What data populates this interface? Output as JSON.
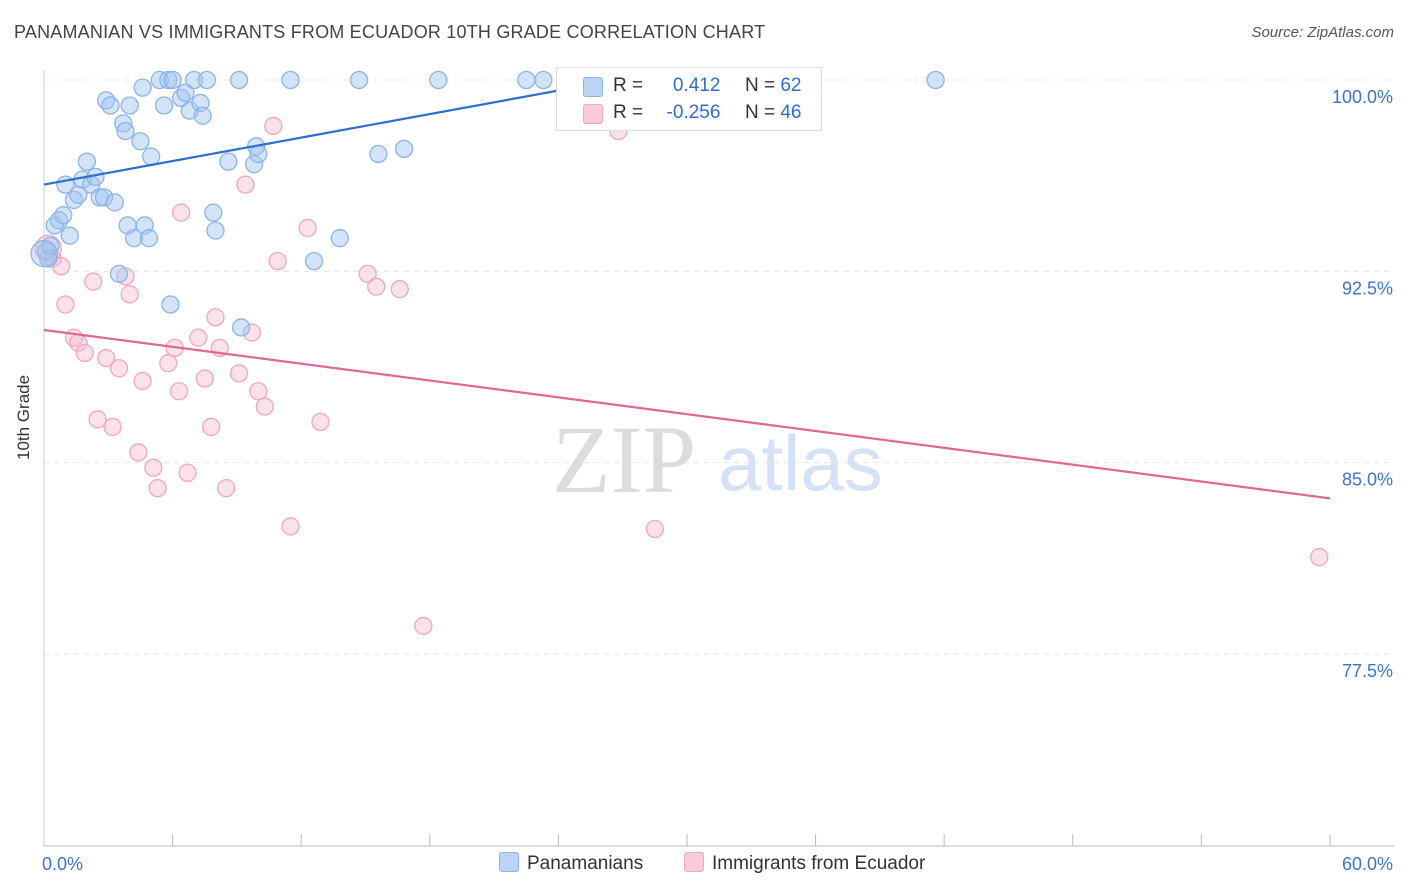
{
  "chart_data": {
    "type": "scatter",
    "title": "PANAMANIAN VS IMMIGRANTS FROM ECUADOR 10TH GRADE CORRELATION CHART",
    "source": "Source: ZipAtlas.com",
    "ylabel": "10th Grade",
    "xlim": [
      0,
      60
    ],
    "ylim": [
      71,
      101.5
    ],
    "x_tick_labels": [
      "0.0%",
      "60.0%"
    ],
    "y_ticks": [
      {
        "value": 77.5,
        "label": "77.5%"
      },
      {
        "value": 85.0,
        "label": "85.0%"
      },
      {
        "value": 92.5,
        "label": "92.5%"
      },
      {
        "value": 100.0,
        "label": "100.0%"
      }
    ],
    "watermark": {
      "zip": "ZIP",
      "atlas": "atlas"
    },
    "legend": {
      "r_label": "R =",
      "n_label": "N =",
      "entries": [
        {
          "r": "0.412",
          "n": "62"
        },
        {
          "r": "-0.256",
          "n": "46"
        }
      ]
    },
    "series": [
      {
        "name": "Panamanians",
        "color": "#8ab4ea",
        "line_color": "#2c6fd1",
        "trend": {
          "x": [
            0,
            28
          ],
          "y": [
            95.9,
            100.2
          ]
        },
        "points": [
          [
            0.1,
            93.3
          ],
          [
            0.2,
            93.0
          ],
          [
            0.3,
            93.5
          ],
          [
            0.5,
            94.3
          ],
          [
            0.7,
            94.5
          ],
          [
            0.9,
            94.7
          ],
          [
            1.0,
            95.9
          ],
          [
            1.2,
            93.9
          ],
          [
            1.4,
            95.3
          ],
          [
            1.6,
            95.5
          ],
          [
            1.8,
            96.1
          ],
          [
            2.0,
            96.8
          ],
          [
            2.2,
            95.9
          ],
          [
            2.4,
            96.2
          ],
          [
            2.6,
            95.4
          ],
          [
            2.8,
            95.4
          ],
          [
            2.9,
            99.2
          ],
          [
            3.1,
            99.0
          ],
          [
            3.3,
            95.2
          ],
          [
            3.5,
            92.4
          ],
          [
            3.7,
            98.3
          ],
          [
            3.8,
            98.0
          ],
          [
            3.9,
            94.3
          ],
          [
            4.0,
            99.0
          ],
          [
            4.2,
            93.8
          ],
          [
            4.5,
            97.6
          ],
          [
            4.6,
            99.7
          ],
          [
            4.7,
            94.3
          ],
          [
            4.9,
            93.8
          ],
          [
            5.0,
            97.0
          ],
          [
            5.4,
            100.0
          ],
          [
            5.6,
            99.0
          ],
          [
            5.8,
            100.0
          ],
          [
            6.0,
            100.0
          ],
          [
            5.9,
            91.2
          ],
          [
            6.4,
            99.3
          ],
          [
            6.6,
            99.5
          ],
          [
            6.8,
            98.8
          ],
          [
            7.0,
            100.0
          ],
          [
            7.3,
            99.1
          ],
          [
            7.4,
            98.6
          ],
          [
            7.6,
            100.0
          ],
          [
            7.9,
            94.8
          ],
          [
            8.0,
            94.1
          ],
          [
            8.6,
            96.8
          ],
          [
            9.1,
            100.0
          ],
          [
            9.2,
            90.3
          ],
          [
            9.8,
            96.7
          ],
          [
            9.9,
            97.4
          ],
          [
            10.0,
            97.1
          ],
          [
            11.5,
            100.0
          ],
          [
            12.6,
            92.9
          ],
          [
            13.8,
            93.8
          ],
          [
            14.7,
            100.0
          ],
          [
            15.6,
            97.1
          ],
          [
            16.8,
            97.3
          ],
          [
            18.4,
            100.0
          ],
          [
            22.5,
            100.0
          ],
          [
            23.3,
            100.0
          ],
          [
            28.0,
            100.0
          ],
          [
            41.6,
            100.0
          ],
          [
            0.0,
            93.2
          ]
        ]
      },
      {
        "name": "Immigrants from Ecuador",
        "color": "#f2a6bf",
        "line_color": "#e0679a",
        "trend": {
          "x": [
            0,
            60
          ],
          "y": [
            90.2,
            83.6
          ]
        },
        "points": [
          [
            0.4,
            93.0
          ],
          [
            0.8,
            92.7
          ],
          [
            1.0,
            91.2
          ],
          [
            1.4,
            89.9
          ],
          [
            1.6,
            89.7
          ],
          [
            1.9,
            89.3
          ],
          [
            2.3,
            92.1
          ],
          [
            2.5,
            86.7
          ],
          [
            2.9,
            89.1
          ],
          [
            3.2,
            86.4
          ],
          [
            3.5,
            88.7
          ],
          [
            3.8,
            92.3
          ],
          [
            4.0,
            91.6
          ],
          [
            4.4,
            85.4
          ],
          [
            4.6,
            88.2
          ],
          [
            5.1,
            84.8
          ],
          [
            5.3,
            84.0
          ],
          [
            5.8,
            88.9
          ],
          [
            6.1,
            89.5
          ],
          [
            6.3,
            87.8
          ],
          [
            6.4,
            94.8
          ],
          [
            6.7,
            84.6
          ],
          [
            7.2,
            89.9
          ],
          [
            7.5,
            88.3
          ],
          [
            7.8,
            86.4
          ],
          [
            8.0,
            90.7
          ],
          [
            8.2,
            89.5
          ],
          [
            8.5,
            84.0
          ],
          [
            9.1,
            88.5
          ],
          [
            9.4,
            95.9
          ],
          [
            9.7,
            90.1
          ],
          [
            10.0,
            87.8
          ],
          [
            10.3,
            87.2
          ],
          [
            10.7,
            98.2
          ],
          [
            10.9,
            92.9
          ],
          [
            11.5,
            82.5
          ],
          [
            12.3,
            94.2
          ],
          [
            12.9,
            86.6
          ],
          [
            15.1,
            92.4
          ],
          [
            15.5,
            91.9
          ],
          [
            16.6,
            91.8
          ],
          [
            17.7,
            78.6
          ],
          [
            26.8,
            98.0
          ],
          [
            28.5,
            82.4
          ],
          [
            59.5,
            81.3
          ],
          [
            0.2,
            93.4
          ]
        ]
      }
    ]
  }
}
